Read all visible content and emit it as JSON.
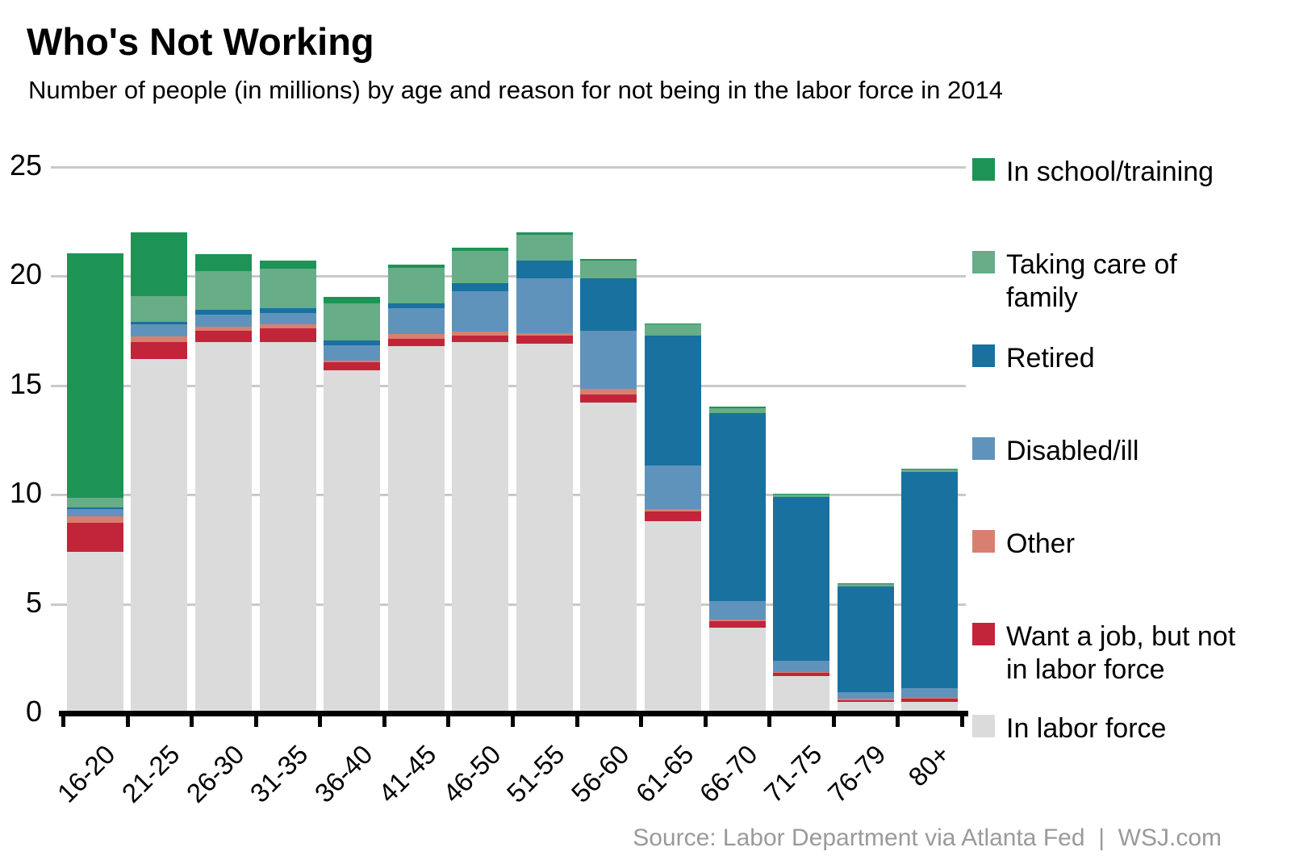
{
  "header": {
    "title": "Who's Not Working",
    "subtitle": "Number of people (in millions) by age and reason for not being in the labor force in 2014"
  },
  "source_credit": "Source: Labor Department via Atlanta Fed  |  WSJ.com",
  "chart_data": {
    "type": "bar",
    "stacked": true,
    "title": "Who's Not Working",
    "subtitle": "Number of people (in millions) by age and reason for not being in the labor force in 2014",
    "xlabel": "",
    "ylabel": "",
    "ylim": [
      0,
      25
    ],
    "y_ticks": [
      0,
      5,
      10,
      15,
      20,
      25
    ],
    "grid": true,
    "legend_position": "right",
    "categories": [
      "16-20",
      "21-25",
      "26-30",
      "31-35",
      "36-40",
      "41-45",
      "46-50",
      "51-55",
      "56-60",
      "61-65",
      "66-70",
      "71-75",
      "76-79",
      "80+"
    ],
    "series": [
      {
        "name": "In labor force",
        "color": "#dbdbdb",
        "values": [
          7.4,
          16.2,
          17.0,
          17.0,
          15.7,
          16.8,
          17.0,
          16.9,
          14.2,
          8.8,
          3.9,
          1.7,
          0.5,
          0.5
        ]
      },
      {
        "name": "Want a job, but not in labor force",
        "color": "#c2243a",
        "values": [
          1.3,
          0.8,
          0.5,
          0.6,
          0.35,
          0.35,
          0.3,
          0.4,
          0.4,
          0.45,
          0.3,
          0.15,
          0.1,
          0.15
        ]
      },
      {
        "name": "Other",
        "color": "#d8806f",
        "values": [
          0.3,
          0.25,
          0.2,
          0.2,
          0.1,
          0.2,
          0.15,
          0.1,
          0.25,
          0.1,
          0.1,
          0.05,
          0.05,
          0.05
        ]
      },
      {
        "name": "Disabled/ill",
        "color": "#6093bb",
        "values": [
          0.35,
          0.55,
          0.55,
          0.5,
          0.7,
          1.2,
          1.85,
          2.5,
          2.65,
          2.0,
          0.85,
          0.5,
          0.3,
          0.45
        ]
      },
      {
        "name": "Retired",
        "color": "#19719f",
        "values": [
          0.05,
          0.1,
          0.2,
          0.25,
          0.2,
          0.2,
          0.4,
          0.8,
          2.4,
          5.95,
          8.6,
          7.5,
          4.85,
          9.9
        ]
      },
      {
        "name": "Taking care of family",
        "color": "#66ad88",
        "values": [
          0.45,
          1.2,
          1.8,
          1.8,
          1.7,
          1.65,
          1.45,
          1.2,
          0.8,
          0.5,
          0.2,
          0.1,
          0.1,
          0.1
        ]
      },
      {
        "name": "In school/training",
        "color": "#1e9356",
        "values": [
          11.2,
          2.9,
          0.75,
          0.35,
          0.3,
          0.15,
          0.15,
          0.1,
          0.1,
          0.05,
          0.1,
          0.05,
          0.05,
          0.05
        ]
      }
    ]
  },
  "legend": {
    "items": [
      {
        "label": "In school/training",
        "color": "#1e9356"
      },
      {
        "label": "Taking care of\nfamily",
        "color": "#66ad88"
      },
      {
        "label": "Retired",
        "color": "#19719f"
      },
      {
        "label": "Disabled/ill",
        "color": "#6093bb"
      },
      {
        "label": "Other",
        "color": "#d8806f"
      },
      {
        "label": "Want a job, but not\nin labor force",
        "color": "#c2243a"
      },
      {
        "label": "In labor force",
        "color": "#dbdbdb"
      }
    ]
  }
}
